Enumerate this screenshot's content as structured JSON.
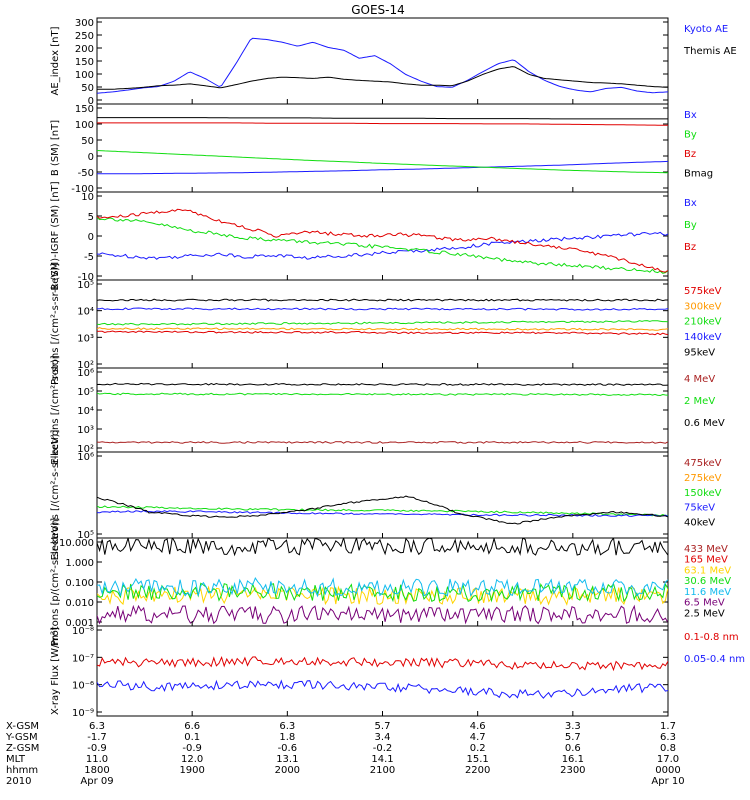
{
  "title": "GOES-14",
  "colors": {
    "blue": "#1a1aff",
    "red": "#e00000",
    "green": "#11dd11",
    "orange": "#ff9900",
    "black": "#000000",
    "yellow": "#ffd400",
    "cyan": "#11bbee",
    "purple": "#770077",
    "darkred": "#aa2222"
  },
  "chart_data": [
    {
      "type": "line",
      "panel": 1,
      "ylabel": "AE_index [nT]",
      "yticks": [
        "300",
        "250",
        "200",
        "150",
        "100",
        "50",
        "0"
      ],
      "ylim": [
        0,
        320
      ],
      "series": [
        {
          "name": "Kyoto AE",
          "color": "#1a1aff",
          "values": [
            40,
            45,
            52,
            60,
            65,
            85,
            120,
            95,
            62,
            150,
            245,
            240,
            230,
            215,
            230,
            210,
            200,
            170,
            180,
            150,
            110,
            85,
            65,
            62,
            88,
            120,
            150,
            165,
            120,
            88,
            65,
            52,
            45,
            58,
            62,
            48,
            42,
            45
          ]
        },
        {
          "name": "Themis AE",
          "color": "#000000",
          "values": [
            55,
            55,
            58,
            62,
            68,
            70,
            75,
            68,
            60,
            72,
            85,
            95,
            100,
            98,
            95,
            100,
            92,
            88,
            85,
            82,
            75,
            70,
            70,
            68,
            85,
            110,
            130,
            140,
            110,
            95,
            90,
            85,
            80,
            78,
            75,
            70,
            65,
            62
          ]
        }
      ]
    },
    {
      "type": "line",
      "panel": 2,
      "ylabel": "B (SM) [nT]",
      "yticks": [
        "150",
        "100",
        "50",
        "0",
        "-50",
        "-100"
      ],
      "ylim": [
        -110,
        155
      ],
      "series": [
        {
          "name": "Bx",
          "color": "#1a1aff",
          "values": [
            -55,
            -55,
            -54,
            -53,
            -52,
            -50,
            -48,
            -46,
            -43,
            -41,
            -38,
            -35,
            -32,
            -29,
            -25,
            -21,
            -18
          ]
        },
        {
          "name": "By",
          "color": "#11dd11",
          "values": [
            15,
            10,
            5,
            0,
            -5,
            -10,
            -15,
            -19,
            -24,
            -28,
            -32,
            -36,
            -40,
            -44,
            -47,
            -50,
            -52
          ]
        },
        {
          "name": "Bz",
          "color": "#e00000",
          "values": [
            98,
            98,
            98,
            98,
            98,
            97,
            97,
            97,
            96,
            96,
            96,
            95,
            95,
            94,
            93,
            92,
            91
          ]
        },
        {
          "name": "Bmag",
          "color": "#000000",
          "values": [
            114,
            114,
            114,
            114,
            113,
            113,
            113,
            112,
            112,
            112,
            111,
            111,
            111,
            110,
            110,
            110,
            110
          ]
        }
      ]
    },
    {
      "type": "line",
      "panel": 3,
      "ylabel": "B (SM)-IGRF (SM) [nT]",
      "yticks": [
        "10",
        "5",
        "0",
        "-5",
        "-10"
      ],
      "ylim": [
        -11,
        11
      ],
      "series": [
        {
          "name": "Bx",
          "color": "#1a1aff",
          "values": [
            -4.5,
            -5,
            -5.5,
            -5,
            -4.5,
            -5.2,
            -4.8,
            -5.5,
            -5,
            -4.5,
            -4,
            -3.5,
            -3,
            -2,
            -1.5,
            -1,
            -0.5,
            0,
            0.5,
            0.5
          ]
        },
        {
          "name": "By",
          "color": "#11dd11",
          "values": [
            4.5,
            4,
            3,
            1.5,
            0.5,
            -0.5,
            -1,
            -1.5,
            -2,
            -2.5,
            -3,
            -3.8,
            -4.5,
            -5.5,
            -6.5,
            -7,
            -7.5,
            -8,
            -8.5,
            -9
          ]
        },
        {
          "name": "Bz",
          "color": "#e00000",
          "values": [
            4.5,
            5,
            6,
            6.5,
            4,
            2,
            0,
            1,
            0.5,
            0,
            0.5,
            0,
            -1,
            -0.5,
            -1.5,
            -2.5,
            -3.5,
            -5,
            -7,
            -9
          ]
        }
      ]
    },
    {
      "type": "line",
      "panel": 4,
      "ylabel": "Protons [/(cm²-s-sr-keV)]",
      "ylog": true,
      "yticks": [
        "10⁵",
        "10⁴",
        "10³",
        "10²"
      ],
      "ylim_log10": [
        1.6,
        5.1
      ],
      "series": [
        {
          "name": "575keV",
          "color": "#e00000",
          "values": [
            1100,
            1100,
            1050,
            1050,
            1050,
            1000,
            1000,
            1000,
            950,
            900
          ]
        },
        {
          "name": "300keV",
          "color": "#ff9900",
          "values": [
            1500,
            1450,
            1450,
            1450,
            1400,
            1400,
            1400,
            1380,
            1380,
            1350
          ]
        },
        {
          "name": "210keV",
          "color": "#11dd11",
          "values": [
            2200,
            2200,
            2300,
            2350,
            2400,
            2500,
            2600,
            2700,
            2800,
            2900
          ]
        },
        {
          "name": "140keV",
          "color": "#1a1aff",
          "values": [
            9000,
            9000,
            8900,
            8900,
            8800,
            8800,
            8700,
            8700,
            8600,
            8500
          ]
        },
        {
          "name": "95keV",
          "color": "#000000",
          "values": [
            20000,
            20000,
            20000,
            20000,
            20000,
            20000,
            20000,
            20000,
            20000,
            20000
          ]
        }
      ]
    },
    {
      "type": "line",
      "panel": 5,
      "ylabel": "Electrons [/(cm²-s-sr)]",
      "ylog": true,
      "yticks": [
        "10⁶",
        "10⁵",
        "10⁴",
        "10³",
        "10²"
      ],
      "ylim_log10": [
        1.7,
        6.1
      ],
      "series": [
        {
          "name": "4 MeV",
          "color": "#aa2222",
          "values": [
            160,
            160,
            160,
            160,
            160,
            160,
            160,
            160,
            160,
            160
          ]
        },
        {
          "name": "2 MeV",
          "color": "#11dd11",
          "values": [
            55000,
            55000,
            54000,
            54000,
            53000,
            53000,
            52000,
            52000,
            51000,
            50000
          ]
        },
        {
          "name": "0.6 MeV",
          "color": "#000000",
          "values": [
            180000,
            180000,
            178000,
            176000,
            175000,
            174000,
            173000,
            172000,
            171000,
            170000
          ]
        }
      ]
    },
    {
      "type": "line",
      "panel": 6,
      "ylabel": "Electrons [/(cm²-s-sr-keV)]",
      "ylog": true,
      "yticks": [
        "10⁶",
        "10⁵"
      ],
      "ylim_log10": [
        4.9,
        6.0
      ],
      "series": [
        {
          "name": "475keV",
          "color": "#aa2222",
          "values": []
        },
        {
          "name": "275keV",
          "color": "#ff9900",
          "values": []
        },
        {
          "name": "150keV",
          "color": "#11dd11",
          "values": [
            200000,
            195000,
            190000,
            185000,
            182000,
            180000,
            178000,
            175000,
            170000,
            165000,
            160000,
            155000
          ]
        },
        {
          "name": "75keV",
          "color": "#1a1aff",
          "values": [
            170000,
            175000,
            172000,
            168000,
            165000,
            162000,
            160000,
            158000,
            156000,
            155000,
            154000,
            153000
          ]
        },
        {
          "name": "40keV",
          "color": "#000000",
          "values": [
            260000,
            170000,
            150000,
            150000,
            180000,
            230000,
            270000,
            160000,
            120000,
            150000,
            170000,
            150000
          ]
        }
      ]
    },
    {
      "type": "line",
      "panel": 7,
      "ylabel": "Protons [p/(cm²-s-sr-keV)]",
      "ylog": true,
      "yticks": [
        "10.000",
        "1.000",
        "0.100",
        "0.010",
        "0.001"
      ],
      "ylim_log10": [
        -3.1,
        1.4
      ],
      "series": [
        {
          "name": "433 MeV",
          "color": "#aa2222",
          "values": []
        },
        {
          "name": "165 MeV",
          "color": "#e00000",
          "values": []
        },
        {
          "name": "63.1 MeV",
          "color": "#ffd400",
          "values": [
            0.025,
            0.03,
            0.028,
            0.026,
            0.03
          ]
        },
        {
          "name": "30.6 MeV",
          "color": "#11dd11",
          "values": [
            0.04,
            0.045,
            0.04,
            0.042,
            0.04
          ]
        },
        {
          "name": "11.6 MeV",
          "color": "#11bbee",
          "values": [
            0.07,
            0.08,
            0.075,
            0.07,
            0.075
          ]
        },
        {
          "name": "6.5 MeV",
          "color": "#770077",
          "values": [
            0.003,
            0.003,
            0.003,
            0.003,
            0.003
          ]
        },
        {
          "name": "2.5 MeV",
          "color": "#000000",
          "values": [
            10,
            9.5,
            9.5,
            9,
            9
          ]
        }
      ]
    },
    {
      "type": "line",
      "panel": 8,
      "ylabel": "X-ray Flux [W/m²]",
      "ylog": true,
      "yticks": [
        "10⁻⁸",
        "10⁻⁷",
        "10⁻⁶",
        "10⁻⁹"
      ],
      "series": [
        {
          "name": "0.1-0.8 nm",
          "color": "#e00000",
          "values": [
            7e-08,
            6.5e-08,
            7e-08,
            8e-08,
            7e-08,
            6.5e-08,
            6e-08,
            5e-08,
            5e-08,
            5.5e-08
          ]
        },
        {
          "name": "0.05-0.4 nm",
          "color": "#1a1aff",
          "values": [
            1e-08,
            8e-09,
            9e-09,
            1e-08,
            8e-09,
            7e-09,
            5e-09,
            4e-09,
            6e-09,
            8e-09
          ]
        }
      ]
    }
  ],
  "time_axis": {
    "labels": [
      "X-GSM",
      "Y-GSM",
      "Z-GSM",
      "MLT",
      "hhmm",
      "2010"
    ],
    "columns": [
      [
        "6.3",
        "-1.7",
        "-0.9",
        "11.0",
        "1800",
        "Apr 09"
      ],
      [
        "6.6",
        "0.1",
        "-0.9",
        "12.0",
        "1900",
        ""
      ],
      [
        "6.3",
        "1.8",
        "-0.6",
        "13.1",
        "2000",
        ""
      ],
      [
        "5.7",
        "3.4",
        "-0.2",
        "14.1",
        "2100",
        ""
      ],
      [
        "4.6",
        "4.7",
        "0.2",
        "15.1",
        "2200",
        ""
      ],
      [
        "3.3",
        "5.7",
        "0.6",
        "16.1",
        "2300",
        ""
      ],
      [
        "1.7",
        "6.3",
        "0.8",
        "17.0",
        "0000",
        "Apr 10"
      ]
    ]
  }
}
